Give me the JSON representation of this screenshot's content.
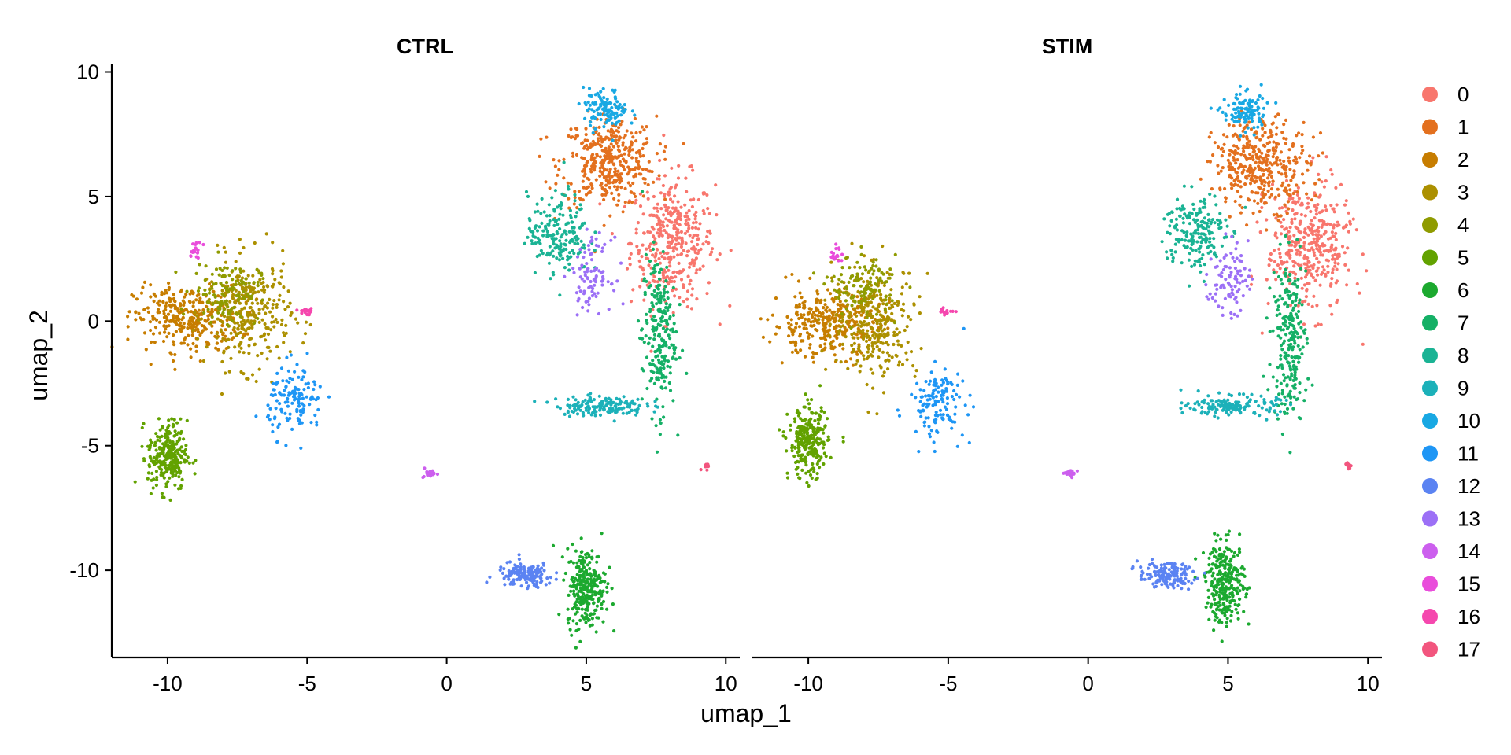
{
  "chart_data": {
    "type": "scatter",
    "plot_kind": "UMAP split by condition",
    "panels": [
      "CTRL",
      "STIM"
    ],
    "xlabel": "umap_1",
    "ylabel": "umap_2",
    "xlim": [
      -12,
      10.5
    ],
    "ylim": [
      -13.5,
      10.3
    ],
    "xticks": [
      -10,
      -5,
      0,
      5,
      10
    ],
    "yticks": [
      10,
      5,
      0,
      -5,
      -10
    ],
    "grid": false,
    "legend_position": "right",
    "legend": [
      "0",
      "1",
      "2",
      "3",
      "4",
      "5",
      "6",
      "7",
      "8",
      "9",
      "10",
      "11",
      "12",
      "13",
      "14",
      "15",
      "16",
      "17"
    ],
    "colors": [
      "#F8766D",
      "#E58700",
      "#C99800",
      "#A3A500",
      "#6BB100",
      "#00BA38",
      "#00BF7D",
      "#00C0AF",
      "#00BCD8",
      "#00B0F6",
      "#619CFF",
      "#B983FF",
      "#E76BF3",
      "#FD61D1",
      "#FF67A4",
      "#F0608A",
      "#E85D8F",
      "#FF6A8A"
    ],
    "cluster_colors": {
      "0": "#F8766D",
      "1": "#E3701E",
      "2": "#C77D00",
      "3": "#AC9000",
      "4": "#8F9B00",
      "5": "#62A200",
      "6": "#1CA92F",
      "7": "#15B066",
      "8": "#1AB394",
      "9": "#1CB1B9",
      "10": "#18A8E3",
      "11": "#1E96F5",
      "12": "#5B83F2",
      "13": "#9C70F6",
      "14": "#CC5FEE",
      "15": "#E94DDB",
      "16": "#F547AE",
      "17": "#F2557E"
    },
    "clusters": [
      {
        "name": "0",
        "center": {
          "CTRL": [
            8.1,
            3.2
          ],
          "STIM": [
            7.9,
            3.0
          ]
        },
        "spread": [
          0.75,
          1.3
        ]
      },
      {
        "name": "1",
        "center": {
          "CTRL": [
            5.8,
            6.4
          ],
          "STIM": [
            6.2,
            6.3
          ]
        },
        "spread": [
          0.85,
          0.9
        ]
      },
      {
        "name": "2",
        "center": {
          "CTRL": [
            -9.3,
            0.1
          ],
          "STIM": [
            -9.4,
            -0.1
          ]
        },
        "spread": [
          0.95,
          0.65
        ]
      },
      {
        "name": "3",
        "center": {
          "CTRL": [
            -7.1,
            0.3
          ],
          "STIM": [
            -7.6,
            0.0
          ]
        },
        "spread": [
          0.75,
          1.1
        ]
      },
      {
        "name": "4",
        "center": {
          "CTRL": [
            -7.9,
            1.2
          ],
          "STIM": [
            -8.0,
            1.4
          ]
        },
        "spread": [
          0.6,
          0.6
        ]
      },
      {
        "name": "5",
        "center": {
          "CTRL": [
            -10.0,
            -5.4
          ],
          "STIM": [
            -10.0,
            -4.9
          ]
        },
        "spread": [
          0.35,
          0.7
        ]
      },
      {
        "name": "6",
        "center": {
          "CTRL": [
            5.0,
            -10.7
          ],
          "STIM": [
            4.9,
            -10.5
          ]
        },
        "spread": [
          0.35,
          0.8
        ]
      },
      {
        "name": "7",
        "center": {
          "CTRL": [
            7.6,
            -0.5
          ],
          "STIM": [
            7.2,
            -0.7
          ]
        },
        "spread": [
          0.3,
          1.6
        ]
      },
      {
        "name": "8",
        "center": {
          "CTRL": [
            4.0,
            3.5
          ],
          "STIM": [
            3.8,
            3.6
          ]
        },
        "spread": [
          0.55,
          0.8
        ]
      },
      {
        "name": "9",
        "center": {
          "CTRL": [
            5.5,
            -3.4
          ],
          "STIM": [
            5.2,
            -3.4
          ]
        },
        "spread": [
          0.8,
          0.2
        ]
      },
      {
        "name": "10",
        "center": {
          "CTRL": [
            5.7,
            8.5
          ],
          "STIM": [
            5.6,
            8.4
          ]
        },
        "spread": [
          0.4,
          0.4
        ]
      },
      {
        "name": "11",
        "center": {
          "CTRL": [
            -5.4,
            -3.2
          ],
          "STIM": [
            -5.4,
            -3.3
          ]
        },
        "spread": [
          0.5,
          0.7
        ]
      },
      {
        "name": "12",
        "center": {
          "CTRL": [
            2.8,
            -10.2
          ],
          "STIM": [
            2.8,
            -10.2
          ]
        },
        "spread": [
          0.5,
          0.25
        ]
      },
      {
        "name": "13",
        "center": {
          "CTRL": [
            5.2,
            1.9
          ],
          "STIM": [
            5.0,
            1.7
          ]
        },
        "spread": [
          0.35,
          0.7
        ]
      },
      {
        "name": "14",
        "center": {
          "CTRL": [
            -0.6,
            -6.1
          ],
          "STIM": [
            -0.6,
            -6.1
          ]
        },
        "spread": [
          0.12,
          0.1
        ]
      },
      {
        "name": "15",
        "center": {
          "CTRL": [
            -9.0,
            2.8
          ],
          "STIM": [
            -9.0,
            2.7
          ]
        },
        "spread": [
          0.12,
          0.2
        ]
      },
      {
        "name": "16",
        "center": {
          "CTRL": [
            -5.0,
            0.4
          ],
          "STIM": [
            -5.0,
            0.4
          ]
        },
        "spread": [
          0.15,
          0.06
        ]
      },
      {
        "name": "17",
        "center": {
          "CTRL": [
            9.3,
            -5.8
          ],
          "STIM": [
            9.3,
            -5.8
          ]
        },
        "spread": [
          0.08,
          0.08
        ]
      }
    ]
  }
}
